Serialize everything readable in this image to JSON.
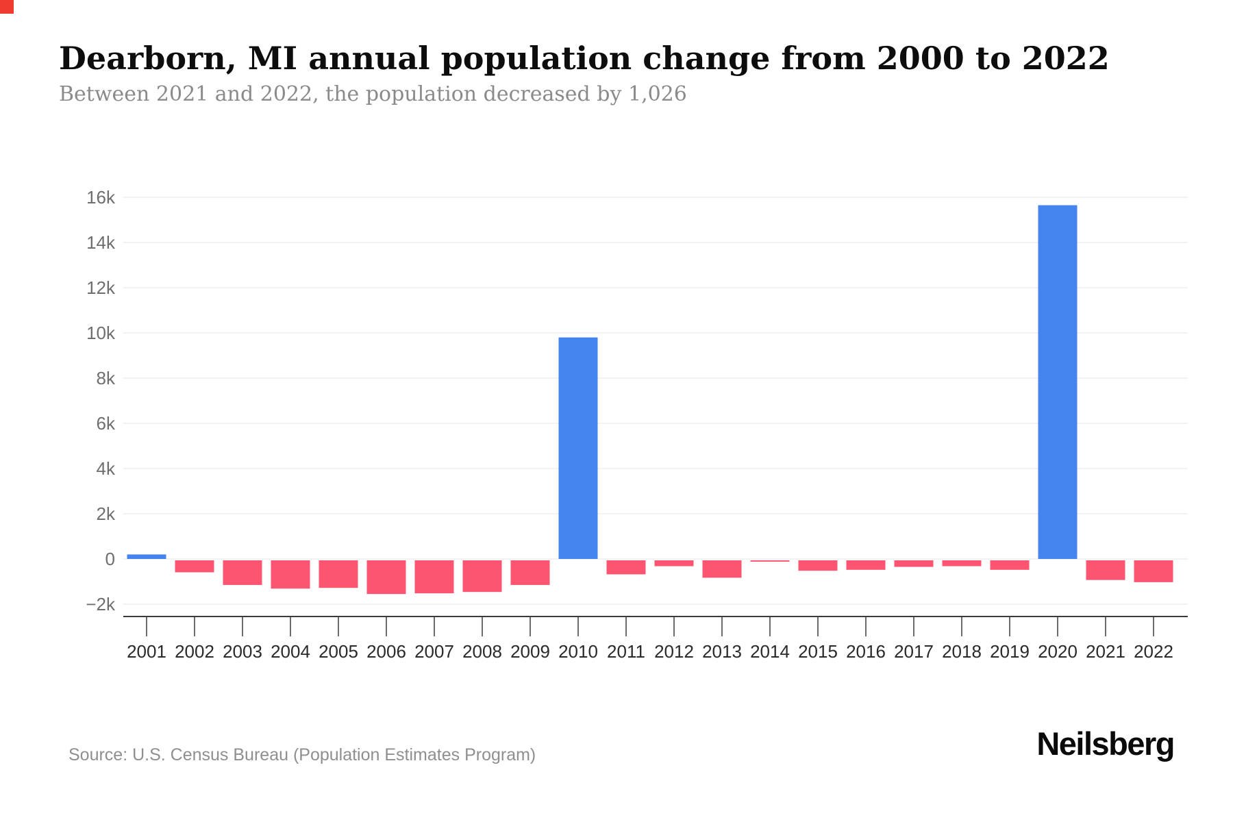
{
  "page": {
    "accent_square_color": "#EF3B30",
    "background_color": "#FFFFFF"
  },
  "header": {
    "title": "Dearborn, MI annual population change from 2000 to 2022",
    "subtitle": "Between 2021 and 2022, the population decreased by 1,026"
  },
  "chart_data": {
    "type": "bar",
    "title": "Dearborn, MI annual population change from 2000 to 2022",
    "subtitle": "Between 2021 and 2022, the population decreased by 1,026",
    "categories": [
      "2001",
      "2002",
      "2003",
      "2004",
      "2005",
      "2006",
      "2007",
      "2008",
      "2009",
      "2010",
      "2011",
      "2012",
      "2013",
      "2014",
      "2015",
      "2016",
      "2017",
      "2018",
      "2019",
      "2020",
      "2021",
      "2022"
    ],
    "values": [
      200,
      -590,
      -1150,
      -1310,
      -1280,
      -1550,
      -1520,
      -1460,
      -1150,
      9800,
      -680,
      -320,
      -830,
      -120,
      -520,
      -480,
      -350,
      -320,
      -480,
      15650,
      -930,
      -1026
    ],
    "xlabel": "",
    "ylabel": "",
    "ylim": [
      -2000,
      16000
    ],
    "y_tick_values": [
      16000,
      14000,
      12000,
      10000,
      8000,
      6000,
      4000,
      2000,
      0,
      -2000
    ],
    "y_tick_labels": [
      "16k",
      "14k",
      "12k",
      "10k",
      "8k",
      "6k",
      "4k",
      "2k",
      "0",
      "−2k"
    ],
    "grid": "horizontal-light",
    "legend": "none",
    "positive_color": "#4484EF",
    "negative_color": "#FB5571",
    "grid_color": "#F2F2F2",
    "axis_color": "#3A3A3A",
    "y_tick_label_color": "#6E6E6E",
    "x_tick_label_color": "#2A2A2A"
  },
  "footer": {
    "source": "Source: U.S. Census Bureau (Population Estimates Program)",
    "brand": "Neilsberg"
  }
}
